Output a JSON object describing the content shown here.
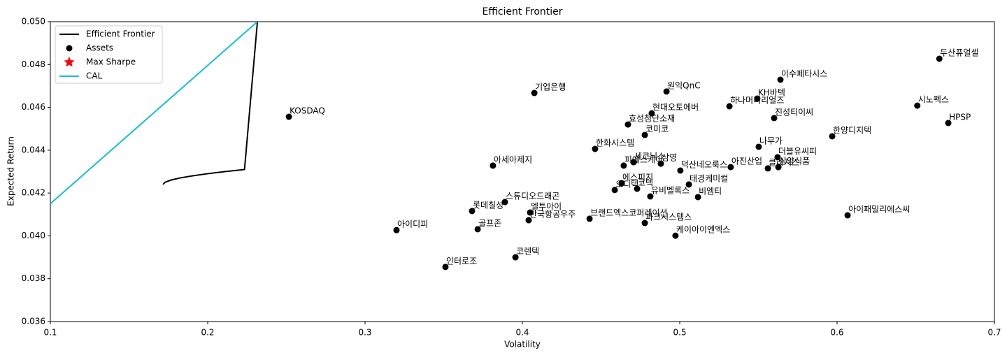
{
  "chart_data": {
    "type": "scatter",
    "title": "Efficient Frontier",
    "x_label": "Volatility",
    "y_label": "Expected Return",
    "xlim": [
      0.1,
      0.7
    ],
    "ylim": [
      0.036,
      0.05
    ],
    "xticks": [
      0.1,
      0.2,
      0.3,
      0.4,
      0.5,
      0.6,
      0.7
    ],
    "yticks": [
      0.036,
      0.038,
      {
        "value": 0.04,
        "label": "0.040"
      },
      0.042,
      0.044,
      0.046,
      0.048,
      {
        "value": 0.05,
        "label": "0.050"
      }
    ],
    "grid": false,
    "legend": "upper left",
    "series": [
      {
        "name": "Efficient Frontier",
        "type": "line",
        "color": "#000000",
        "x": [
          0.1716,
          0.1728,
          0.1764,
          0.1822,
          0.1901,
          0.1997,
          0.2109,
          0.2234,
          0.2316
        ],
        "y": [
          0.0424,
          0.0425,
          0.0426,
          0.0427,
          0.0428,
          0.0429,
          0.043,
          0.0431,
          0.05
        ]
      },
      {
        "name": "Assets",
        "type": "scatter",
        "color": "#000000",
        "labels": [
          "두산퓨얼셀",
          "이수페타시스",
          "KH바텍",
          "하나머티리얼즈",
          "진성티이씨",
          "시노펙스",
          "HPSP",
          "한양디지텍",
          "원익QnC",
          "기업은행",
          "현대오토에버",
          "효성첨단소재",
          "코미코",
          "KOSDAQ",
          "한화시스템",
          "나무가",
          "더블유씨피",
          "아세아제지",
          "피에스케이",
          "세코닉스",
          "삼영",
          "덕산네오룩스",
          "아진산업",
          "클래시스",
          "삼양식품",
          "에스피지",
          "태경케미컬",
          "오디텍",
          "코텍",
          "유비벨록스",
          "비엠티",
          "스튜디오드래곤",
          "롯데칠성",
          "엘투아이",
          "한국항공우주",
          "브랜드엑스코퍼레이션",
          "파크시스템스",
          "아이패밀리에스씨",
          "케이아이엔엑스",
          "골프존",
          "아이디피",
          "코렌텍",
          "인터로조"
        ],
        "x": [
          0.665,
          0.564,
          0.5493,
          0.5316,
          0.56,
          0.651,
          0.6707,
          0.5969,
          0.4916,
          0.4076,
          0.4822,
          0.4671,
          0.4778,
          0.2516,
          0.4462,
          0.5502,
          0.5622,
          0.3813,
          0.4644,
          0.4707,
          0.488,
          0.5004,
          0.5324,
          0.556,
          0.5627,
          0.4631,
          0.5058,
          0.4587,
          0.4729,
          0.4813,
          0.5116,
          0.3889,
          0.368,
          0.4049,
          0.404,
          0.4427,
          0.4778,
          0.6067,
          0.4973,
          0.3716,
          0.32,
          0.3956,
          0.3511
        ],
        "y": [
          0.04827,
          0.04729,
          0.04641,
          0.04605,
          0.0455,
          0.04608,
          0.04527,
          0.04465,
          0.04674,
          0.04667,
          0.04572,
          0.0452,
          0.04471,
          0.04556,
          0.04406,
          0.04416,
          0.04367,
          0.04328,
          0.04328,
          0.04344,
          0.04337,
          0.04305,
          0.04321,
          0.04315,
          0.04321,
          0.04246,
          0.0424,
          0.04214,
          0.0422,
          0.04184,
          0.04181,
          0.04158,
          0.04116,
          0.04109,
          0.04073,
          0.0408,
          0.0406,
          0.04096,
          0.04001,
          0.04031,
          0.04027,
          0.039,
          0.03855
        ]
      },
      {
        "name": "Max Sharpe",
        "type": "scatter",
        "marker": "star",
        "color": "#ff0000",
        "x": [],
        "y": []
      },
      {
        "name": "CAL",
        "type": "line",
        "color": "#17becf",
        "x": [
          0.1,
          0.2316
        ],
        "y": [
          0.0415,
          0.05
        ]
      }
    ]
  }
}
